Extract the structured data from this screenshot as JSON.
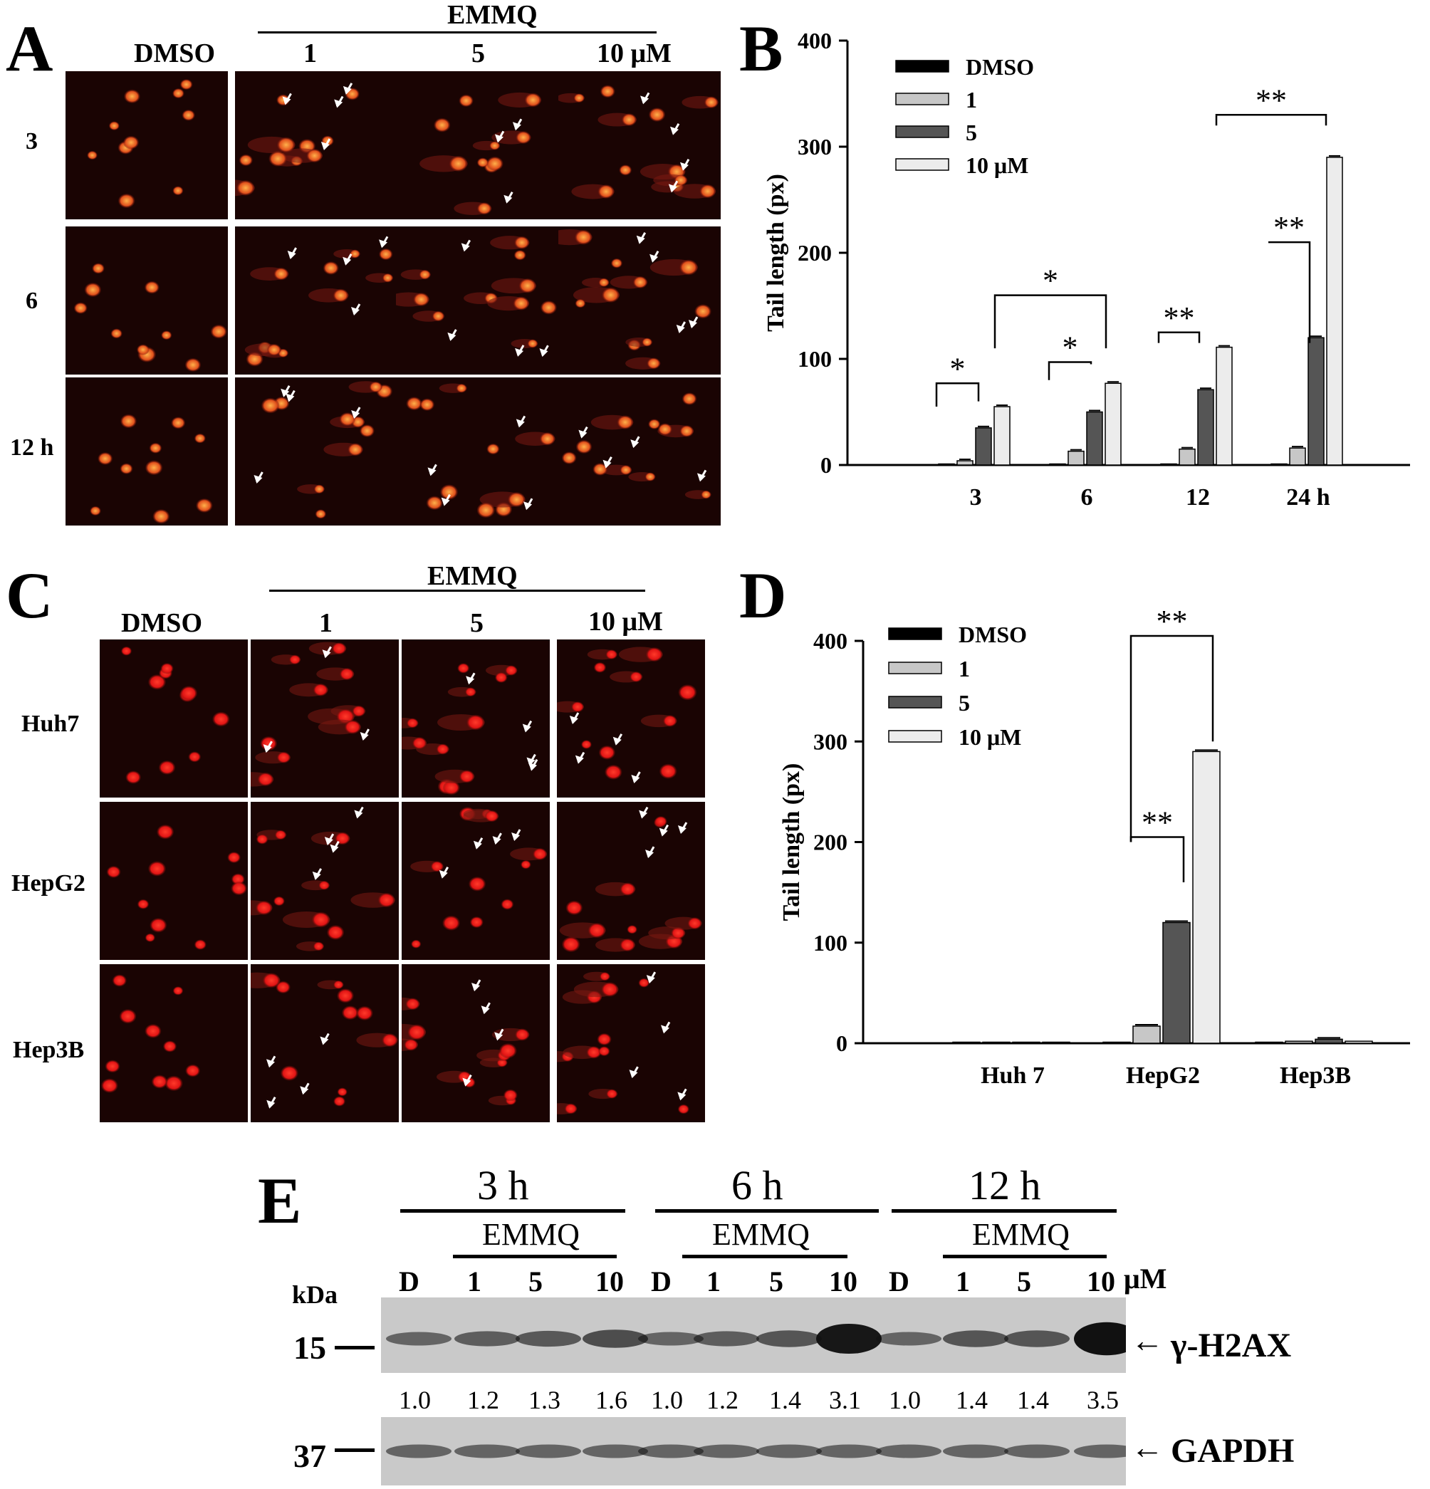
{
  "panelA": {
    "label": "A",
    "group_label": "EMMQ",
    "col_labels": [
      "DMSO",
      "1",
      "5",
      "10 μM"
    ],
    "row_labels": [
      "3",
      "6",
      "12 h"
    ]
  },
  "panelC": {
    "label": "C",
    "group_label": "EMMQ",
    "col_labels": [
      "DMSO",
      "1",
      "5",
      "10 μM"
    ],
    "row_labels": [
      "Huh7",
      "HepG2",
      "Hep3B"
    ]
  },
  "chart_data": [
    {
      "panel": "B",
      "type": "bar",
      "ylabel": "Tail length (px)",
      "ylim": [
        0,
        400
      ],
      "yticks": [
        0,
        100,
        200,
        300,
        400
      ],
      "categories": [
        "3",
        "6",
        "12",
        "24 h"
      ],
      "series": [
        {
          "name": "DMSO",
          "values": [
            0,
            0,
            0,
            0
          ],
          "fill": "#000000"
        },
        {
          "name": "1",
          "values": [
            4,
            13,
            15,
            16
          ],
          "fill": "#c7c7c7"
        },
        {
          "name": "5",
          "values": [
            35,
            50,
            71,
            120
          ],
          "fill": "#555555"
        },
        {
          "name": "10 μM",
          "values": [
            55,
            77,
            111,
            290
          ],
          "fill": "#ececec"
        }
      ],
      "significance": [
        {
          "text": "*"
        },
        {
          "text": "*"
        },
        {
          "text": "*"
        },
        {
          "text": "**"
        },
        {
          "text": "**"
        },
        {
          "text": "**"
        }
      ],
      "legend": "top-left"
    },
    {
      "panel": "D",
      "type": "bar",
      "ylabel": "Tail length (px)",
      "ylim": [
        0,
        400
      ],
      "yticks": [
        0,
        100,
        200,
        300,
        400
      ],
      "categories": [
        "Huh 7",
        "HepG2",
        "Hep3B"
      ],
      "series": [
        {
          "name": "DMSO",
          "values": [
            0,
            0,
            0
          ],
          "fill": "#000000"
        },
        {
          "name": "1",
          "values": [
            1,
            17,
            2
          ],
          "fill": "#c7c7c7"
        },
        {
          "name": "5",
          "values": [
            1,
            120,
            4
          ],
          "fill": "#555555"
        },
        {
          "name": "10 μM",
          "values": [
            1,
            290,
            2
          ],
          "fill": "#ececec"
        }
      ],
      "significance": [
        {
          "text": "**"
        },
        {
          "text": "**"
        }
      ],
      "legend": "top-left"
    }
  ],
  "panelB": {
    "label": "B"
  },
  "panelD": {
    "label": "D"
  },
  "panelE": {
    "label": "E",
    "time_labels": [
      "3 h",
      "6 h",
      "12 h"
    ],
    "group_label": "EMMQ",
    "lane_labels": [
      "D",
      "1",
      "5",
      "10",
      "D",
      "1",
      "5",
      "10",
      "D",
      "1",
      "5",
      "10"
    ],
    "unit": "μM",
    "kda_label": "kDa",
    "markers": [
      "15",
      "37"
    ],
    "proteins": [
      "γ-H2AX",
      "GAPDH"
    ],
    "arrow": "←",
    "quantification": [
      "1.0",
      "1.2",
      "1.3",
      "1.6",
      "1.0",
      "1.2",
      "1.4",
      "3.1",
      "1.0",
      "1.4",
      "1.4",
      "3.5"
    ],
    "h2ax_intensity": [
      1.0,
      1.2,
      1.3,
      1.6,
      1.0,
      1.2,
      1.4,
      3.1,
      1.0,
      1.4,
      1.4,
      3.5
    ]
  }
}
